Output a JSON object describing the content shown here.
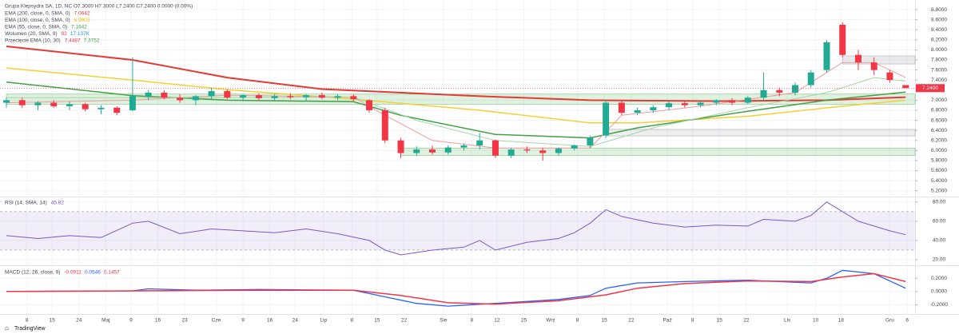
{
  "chart_data": [
    {
      "type": "candlestick",
      "title": "Grupa Klepsydra SA, 1D, NC",
      "ohlc_readout": "O7.3000 H7.3000 L7.2400 C7.2400 0.0000 (0.00%)",
      "up_color": "#22ab94",
      "down_color": "#f23645",
      "ohlc": [
        [
          6.95,
          7.05,
          6.85,
          7.0
        ],
        [
          7.0,
          7.05,
          6.85,
          6.9
        ],
        [
          6.9,
          6.98,
          6.8,
          6.95
        ],
        [
          6.95,
          7.0,
          6.85,
          6.88
        ],
        [
          6.88,
          6.98,
          6.8,
          6.92
        ],
        [
          6.92,
          6.95,
          6.78,
          6.82
        ],
        [
          6.82,
          6.9,
          6.72,
          6.85
        ],
        [
          6.85,
          6.88,
          6.7,
          6.75
        ],
        [
          6.8,
          7.85,
          6.78,
          7.08
        ],
        [
          7.08,
          7.2,
          7.0,
          7.15
        ],
        [
          7.15,
          7.2,
          7.02,
          7.05
        ],
        [
          7.05,
          7.12,
          6.95,
          7.0
        ],
        [
          7.0,
          7.1,
          6.9,
          7.08
        ],
        [
          7.08,
          7.25,
          7.02,
          7.18
        ],
        [
          7.18,
          7.22,
          7.02,
          7.05
        ],
        [
          7.05,
          7.12,
          6.98,
          7.1
        ],
        [
          7.1,
          7.14,
          7.0,
          7.04
        ],
        [
          7.04,
          7.12,
          7.0,
          7.08
        ],
        [
          7.08,
          7.14,
          7.02,
          7.06
        ],
        [
          7.06,
          7.12,
          6.98,
          7.1
        ],
        [
          7.1,
          7.15,
          7.02,
          7.05
        ],
        [
          7.05,
          7.12,
          7.0,
          7.08
        ],
        [
          7.08,
          7.12,
          6.98,
          7.02
        ],
        [
          7.0,
          7.02,
          6.75,
          6.8
        ],
        [
          6.8,
          6.85,
          6.15,
          6.2
        ],
        [
          6.2,
          6.25,
          5.85,
          5.95
        ],
        [
          5.95,
          6.08,
          5.9,
          6.02
        ],
        [
          6.02,
          6.1,
          5.92,
          5.96
        ],
        [
          5.96,
          6.1,
          5.92,
          6.06
        ],
        [
          6.06,
          6.14,
          6.0,
          6.1
        ],
        [
          6.1,
          6.35,
          6.02,
          6.2
        ],
        [
          6.2,
          6.22,
          5.85,
          5.9
        ],
        [
          5.9,
          6.05,
          5.85,
          6.02
        ],
        [
          6.02,
          6.08,
          5.95,
          6.0
        ],
        [
          6.0,
          6.05,
          5.8,
          5.95
        ],
        [
          5.95,
          6.06,
          5.9,
          6.04
        ],
        [
          6.04,
          6.12,
          6.0,
          6.1
        ],
        [
          6.1,
          6.3,
          6.05,
          6.25
        ],
        [
          6.3,
          7.0,
          6.25,
          6.95
        ],
        [
          6.95,
          7.0,
          6.7,
          6.75
        ],
        [
          6.75,
          6.85,
          6.7,
          6.8
        ],
        [
          6.8,
          6.9,
          6.75,
          6.86
        ],
        [
          6.86,
          6.98,
          6.8,
          6.94
        ],
        [
          6.94,
          6.98,
          6.85,
          6.9
        ],
        [
          6.9,
          6.98,
          6.86,
          6.95
        ],
        [
          6.95,
          7.02,
          6.9,
          7.0
        ],
        [
          7.0,
          7.04,
          6.9,
          6.95
        ],
        [
          6.95,
          7.08,
          6.92,
          7.05
        ],
        [
          7.05,
          7.55,
          7.0,
          7.2
        ],
        [
          7.2,
          7.25,
          7.08,
          7.15
        ],
        [
          7.15,
          7.35,
          7.1,
          7.3
        ],
        [
          7.3,
          7.6,
          7.25,
          7.55
        ],
        [
          7.6,
          8.2,
          7.55,
          8.15
        ],
        [
          8.5,
          8.55,
          7.85,
          7.9
        ],
        [
          7.9,
          8.0,
          7.6,
          7.75
        ],
        [
          7.75,
          7.85,
          7.5,
          7.6
        ],
        [
          7.55,
          7.6,
          7.35,
          7.4
        ],
        [
          7.3,
          7.3,
          7.24,
          7.24
        ]
      ],
      "series": [
        {
          "color": "#e53935",
          "width": 2,
          "x": [
            0,
            8,
            14,
            20,
            30,
            37,
            45,
            52,
            57
          ],
          "values": [
            8.07,
            7.8,
            7.45,
            7.22,
            7.08,
            7.0,
            6.98,
            7.0,
            7.06
          ]
        },
        {
          "color": "#f5d033",
          "width": 1.5,
          "x": [
            0,
            8,
            14,
            22,
            30,
            37,
            40,
            47,
            53,
            57
          ],
          "values": [
            7.64,
            7.4,
            7.21,
            7.02,
            6.8,
            6.55,
            6.55,
            6.68,
            6.88,
            7.0
          ]
        },
        {
          "color": "#43a047",
          "width": 1.5,
          "x": [
            0,
            8,
            14,
            22,
            25,
            31,
            37,
            40,
            47,
            52,
            57
          ],
          "values": [
            7.36,
            7.09,
            7.0,
            6.97,
            6.7,
            6.32,
            6.25,
            6.45,
            6.78,
            7.0,
            7.16
          ]
        },
        {
          "color": "#ef9a9a",
          "width": 1,
          "x": [
            0,
            8,
            14,
            22,
            24,
            27,
            31,
            37,
            39,
            44,
            50,
            53,
            55,
            57
          ],
          "values": [
            6.95,
            7.0,
            7.1,
            7.06,
            6.7,
            6.2,
            6.05,
            6.05,
            6.7,
            6.88,
            7.15,
            7.75,
            7.75,
            7.45
          ]
        },
        {
          "color": "#a5d6a7",
          "width": 1,
          "x": [
            0,
            10,
            22,
            26,
            31,
            37,
            41,
            47,
            52,
            55,
            57
          ],
          "values": [
            7.05,
            7.05,
            7.06,
            6.6,
            6.2,
            6.08,
            6.45,
            6.85,
            7.15,
            7.45,
            7.38
          ]
        }
      ],
      "legend": [
        {
          "name": "EMA (200, close, 0, SMA, 0)",
          "readout": [
            "7.0642"
          ],
          "colors": [
            "#e53935"
          ]
        },
        {
          "name": "EMA (100, close, 0, SMA, 0)",
          "readout": [
            "6.9803"
          ],
          "colors": [
            "#f5b800"
          ]
        },
        {
          "name": "EMA (55, close, 0, SMA, 0)",
          "readout": [
            "7.1642"
          ],
          "colors": [
            "#43a047"
          ]
        },
        {
          "name": "Wolumen (20, SMA, 9)",
          "readout": [
            "92",
            "17.137K"
          ],
          "colors": [
            "#f23645",
            "#2196f3"
          ]
        },
        {
          "name": "Przecięcie EMA (10, 30)",
          "readout": [
            "7.4487",
            "7.3752"
          ],
          "colors": [
            "#f23645",
            "#43a047"
          ]
        }
      ],
      "zones": [
        {
          "from": 0,
          "lo": 6.92,
          "hi": 7.12,
          "color": "rgba(76,175,80,0.18)",
          "edge": "#66bb6a"
        },
        {
          "from": 25,
          "lo": 5.9,
          "hi": 6.05,
          "color": "rgba(76,175,80,0.18)",
          "edge": "#66bb6a"
        },
        {
          "from": 38,
          "lo": 6.29,
          "hi": 6.42,
          "color": "rgba(120,123,134,0.12)",
          "edge": "#9e9e9e"
        },
        {
          "from": 53,
          "lo": 7.72,
          "hi": 7.88,
          "color": "rgba(120,123,134,0.15)",
          "edge": "#9e9e9e"
        }
      ],
      "last_price": {
        "value": 7.24,
        "label": "7.2400"
      },
      "ylim": [
        5.1,
        8.96
      ],
      "yticks": [
        {
          "value": 5.2,
          "label": "5.2000"
        },
        {
          "value": 5.4,
          "label": "5.4000"
        },
        {
          "value": 5.6,
          "label": "5.6000"
        },
        {
          "value": 5.8,
          "label": "5.8000"
        },
        {
          "value": 6.0,
          "label": "6.0000"
        },
        {
          "value": 6.2,
          "label": "6.2000"
        },
        {
          "value": 6.4,
          "label": "6.4000"
        },
        {
          "value": 6.6,
          "label": "6.6000"
        },
        {
          "value": 6.8,
          "label": "6.8000"
        },
        {
          "value": 7.0,
          "label": "7.0000"
        },
        {
          "value": 7.4,
          "label": "7.4000"
        },
        {
          "value": 7.6,
          "label": "7.6000"
        },
        {
          "value": 7.8,
          "label": "7.8000"
        },
        {
          "value": 8.0,
          "label": "8.0000"
        },
        {
          "value": 8.2,
          "label": "8.2000"
        },
        {
          "value": 8.4,
          "label": "8.4000"
        },
        {
          "value": 8.6,
          "label": "8.6000"
        },
        {
          "value": 8.8,
          "label": "8.8000"
        }
      ],
      "xticks": [
        {
          "value": 1.3,
          "label": "8"
        },
        {
          "value": 2.9,
          "label": "15"
        },
        {
          "value": 4.6,
          "label": "24"
        },
        {
          "value": 6.3,
          "label": "Maj"
        },
        {
          "value": 7.9,
          "label": "9"
        },
        {
          "value": 9.6,
          "label": "16"
        },
        {
          "value": 11.3,
          "label": "23"
        },
        {
          "value": 13.3,
          "label": "Cze"
        },
        {
          "value": 15.0,
          "label": "9"
        },
        {
          "value": 16.7,
          "label": "16"
        },
        {
          "value": 18.3,
          "label": "24"
        },
        {
          "value": 20.1,
          "label": "Lip"
        },
        {
          "value": 21.9,
          "label": "8"
        },
        {
          "value": 23.5,
          "label": "15"
        },
        {
          "value": 25.2,
          "label": "22"
        },
        {
          "value": 27.7,
          "label": "Sie"
        },
        {
          "value": 29.5,
          "label": "8"
        },
        {
          "value": 31.1,
          "label": "12"
        },
        {
          "value": 32.8,
          "label": "25"
        },
        {
          "value": 34.5,
          "label": "Wrz"
        },
        {
          "value": 36.2,
          "label": "8"
        },
        {
          "value": 37.9,
          "label": "15"
        },
        {
          "value": 39.6,
          "label": "22"
        },
        {
          "value": 41.9,
          "label": "Paź"
        },
        {
          "value": 43.5,
          "label": "8"
        },
        {
          "value": 45.2,
          "label": "15"
        },
        {
          "value": 46.9,
          "label": "22"
        },
        {
          "value": 49.5,
          "label": "Lis"
        },
        {
          "value": 51.3,
          "label": "10"
        },
        {
          "value": 52.9,
          "label": "18"
        },
        {
          "value": 56.0,
          "label": "Gru"
        },
        {
          "value": 57.1,
          "label": "6"
        }
      ],
      "grid": true
    },
    {
      "type": "line",
      "title": "RSI (14, SMA, 14)",
      "readout": "45.82",
      "series": [
        {
          "color": "#7e57c2",
          "width": 1,
          "x": [
            0,
            2,
            4,
            6,
            8,
            9,
            11,
            13,
            15,
            17,
            19,
            21,
            23,
            24,
            25,
            27,
            29,
            30,
            31,
            33,
            35,
            36,
            37,
            38,
            39,
            41,
            43,
            45,
            47,
            48,
            50,
            51,
            52,
            53,
            54,
            56,
            57
          ],
          "values": [
            45,
            42,
            45,
            43,
            58,
            60,
            47,
            52,
            50,
            48,
            52,
            47,
            40,
            30,
            25,
            30,
            33,
            40,
            30,
            38,
            42,
            48,
            58,
            72,
            65,
            58,
            54,
            56,
            55,
            62,
            60,
            66,
            80,
            70,
            60,
            50,
            46
          ]
        }
      ],
      "bands": [
        30,
        70
      ],
      "band_color": "rgba(126,87,194,0.1)",
      "ylim": [
        15,
        84
      ],
      "yticks": [
        {
          "value": 20,
          "label": "20.00"
        },
        {
          "value": 40,
          "label": "40.00"
        },
        {
          "value": 60,
          "label": "60.00"
        },
        {
          "value": 80,
          "label": "80.00"
        }
      ]
    },
    {
      "type": "line",
      "title": "MACD (12, 26, close, 9)",
      "readouts": [
        "-0.0911",
        "0.0546",
        "0.1457"
      ],
      "readout_colors": [
        "#f23645",
        "#2962ff",
        "#f23645"
      ],
      "series": [
        {
          "color": "#2962ff",
          "width": 1.3,
          "x": [
            0,
            8,
            9,
            12,
            16,
            22,
            24,
            26,
            28,
            31,
            35,
            37,
            38,
            40,
            43,
            47,
            51,
            52,
            53,
            55,
            57
          ],
          "values": [
            0.0,
            0.01,
            0.04,
            0.02,
            0.03,
            0.02,
            -0.08,
            -0.18,
            -0.22,
            -0.18,
            -0.12,
            -0.06,
            0.05,
            0.13,
            0.15,
            0.17,
            0.13,
            0.2,
            0.32,
            0.27,
            0.05
          ]
        },
        {
          "color": "#f23645",
          "width": 1.5,
          "x": [
            0,
            16,
            22,
            25,
            28,
            31,
            35,
            38,
            40,
            43,
            47,
            51,
            53,
            55,
            57
          ],
          "values": [
            0.0,
            0.02,
            0.02,
            -0.06,
            -0.17,
            -0.19,
            -0.14,
            -0.05,
            0.05,
            0.12,
            0.16,
            0.15,
            0.22,
            0.27,
            0.15
          ]
        }
      ],
      "ylim": [
        -0.34,
        0.36
      ],
      "yticks": [
        {
          "value": -0.2,
          "label": "-0.2000"
        },
        {
          "value": 0.0,
          "label": "0.0000"
        },
        {
          "value": 0.2,
          "label": "0.2000"
        }
      ]
    }
  ],
  "footer": "TradingView"
}
